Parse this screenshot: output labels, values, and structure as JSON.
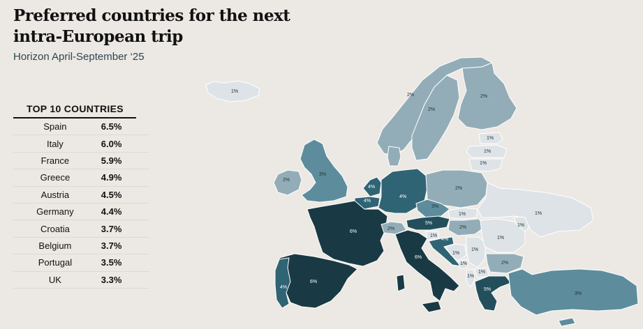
{
  "header": {
    "title": "Preferred countries for the next intra-European trip",
    "subtitle": "Horizon April-September ‘25"
  },
  "top10": {
    "heading": "TOP 10 COUNTRIES",
    "rows": [
      {
        "country": "Spain",
        "value": "6.5%"
      },
      {
        "country": "Italy",
        "value": "6.0%"
      },
      {
        "country": "France",
        "value": "5.9%"
      },
      {
        "country": "Greece",
        "value": "4.9%"
      },
      {
        "country": "Austria",
        "value": "4.5%"
      },
      {
        "country": "Germany",
        "value": "4.4%"
      },
      {
        "country": "Croatia",
        "value": "3.7%"
      },
      {
        "country": "Belgium",
        "value": "3.7%"
      },
      {
        "country": "Portugal",
        "value": "3.5%"
      },
      {
        "country": "UK",
        "value": "3.3%"
      }
    ]
  },
  "map": {
    "colors": {
      "1%": "#dde3e7",
      "2%": "#93adb8",
      "3%": "#5d8d9c",
      "4%": "#2f6474",
      "5%": "#234f5d",
      "6%": "#193a44"
    },
    "labels": {
      "iceland": "1%",
      "norway": "2%",
      "sweden": "2%",
      "finland": "2%",
      "estonia": "1%",
      "latvia": "1%",
      "lithuania": "1%",
      "uk": "3%",
      "ireland": "2%",
      "netherlands": "4%",
      "belgium": "4%",
      "france": "6%",
      "spain": "6%",
      "portugal": "4%",
      "germany": "4%",
      "poland": "2%",
      "czechia": "3%",
      "austria": "5%",
      "switzerland": "2%",
      "hungary": "2%",
      "slovakia": "1%",
      "slovenia": "1%",
      "croatia": "4%",
      "bosnia": "1%",
      "serbia": "1%",
      "montenegro": "1%",
      "albania": "1%",
      "macedonia": "1%",
      "romania": "1%",
      "bulgaria": "2%",
      "greece": "5%",
      "italy": "6%",
      "ukraine": "1%",
      "moldova": "1%",
      "turkey": "3%"
    }
  }
}
